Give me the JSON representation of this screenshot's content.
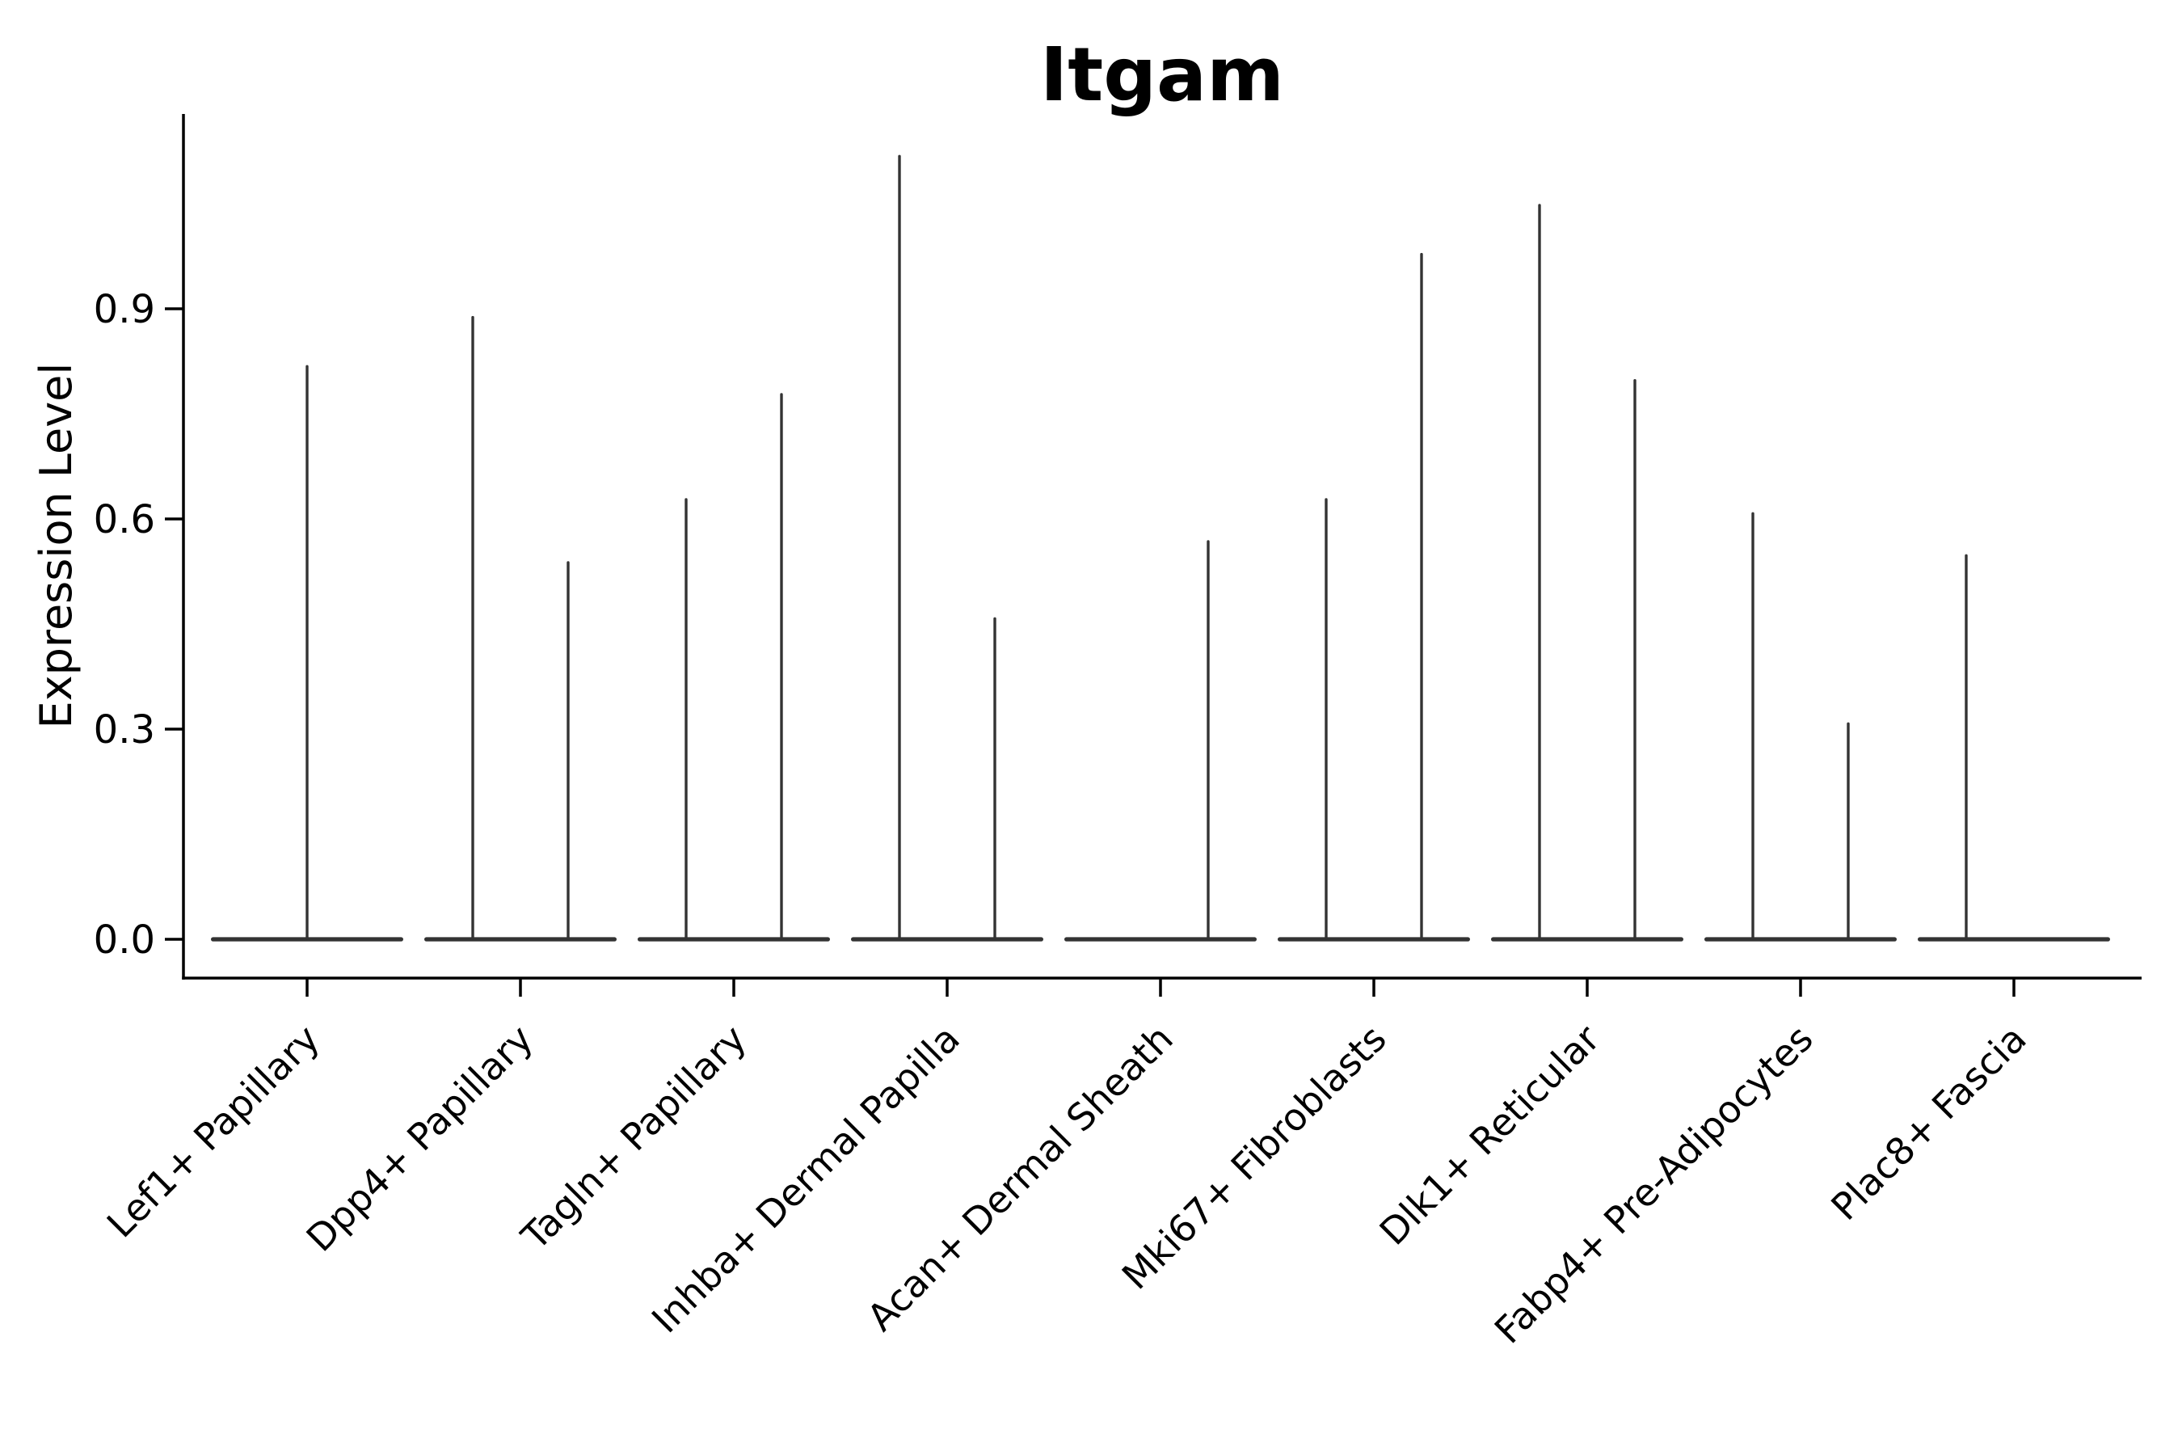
{
  "chart_data": {
    "type": "violin",
    "title": "Itgam",
    "ylabel": "Expression Level",
    "xlabel": "",
    "ylim": [
      -0.055,
      1.178
    ],
    "yticks": [
      0.0,
      0.3,
      0.6,
      0.9
    ],
    "ytick_labels": [
      "0.0",
      "0.3",
      "0.6",
      "0.9"
    ],
    "grid": false,
    "legend": "none",
    "background_color": "#ffffff",
    "axis_color": "#000000",
    "violin_color": "#333333",
    "categories": [
      "Lef1+ Papillary",
      "Dpp4+ Papillary",
      "Tagln+ Papillary",
      "Inhba+ Dermal Papilla",
      "Acan+ Dermal Sheath",
      "Mki67+ Fibroblasts",
      "Dlk1+ Reticular",
      "Fabp4+ Pre-Adipocytes",
      "Plac8+ Fascia"
    ],
    "violins": [
      {
        "category": "Lef1+ Papillary",
        "baseline": 0.0,
        "spikes": [
          {
            "position": "center",
            "max": 0.82
          }
        ]
      },
      {
        "category": "Dpp4+ Papillary",
        "baseline": 0.0,
        "spikes": [
          {
            "position": "left",
            "max": 0.89
          },
          {
            "position": "right",
            "max": 0.54
          }
        ]
      },
      {
        "category": "Tagln+ Papillary",
        "baseline": 0.0,
        "spikes": [
          {
            "position": "left",
            "max": 0.63
          },
          {
            "position": "right",
            "max": 0.78
          }
        ]
      },
      {
        "category": "Inhba+ Dermal Papilla",
        "baseline": 0.0,
        "spikes": [
          {
            "position": "left",
            "max": 1.12
          },
          {
            "position": "right",
            "max": 0.46
          }
        ]
      },
      {
        "category": "Acan+ Dermal Sheath",
        "baseline": 0.0,
        "spikes": [
          {
            "position": "right",
            "max": 0.57
          }
        ]
      },
      {
        "category": "Mki67+ Fibroblasts",
        "baseline": 0.0,
        "spikes": [
          {
            "position": "left",
            "max": 0.63
          },
          {
            "position": "right",
            "max": 0.98
          }
        ]
      },
      {
        "category": "Dlk1+ Reticular",
        "baseline": 0.0,
        "spikes": [
          {
            "position": "left",
            "max": 1.05
          },
          {
            "position": "right",
            "max": 0.8
          }
        ]
      },
      {
        "category": "Fabp4+ Pre-Adipocytes",
        "baseline": 0.0,
        "spikes": [
          {
            "position": "left",
            "max": 0.61
          },
          {
            "position": "right",
            "max": 0.31
          }
        ]
      },
      {
        "category": "Plac8+ Fascia",
        "baseline": 0.0,
        "spikes": [
          {
            "position": "left",
            "max": 0.55
          }
        ]
      }
    ]
  }
}
